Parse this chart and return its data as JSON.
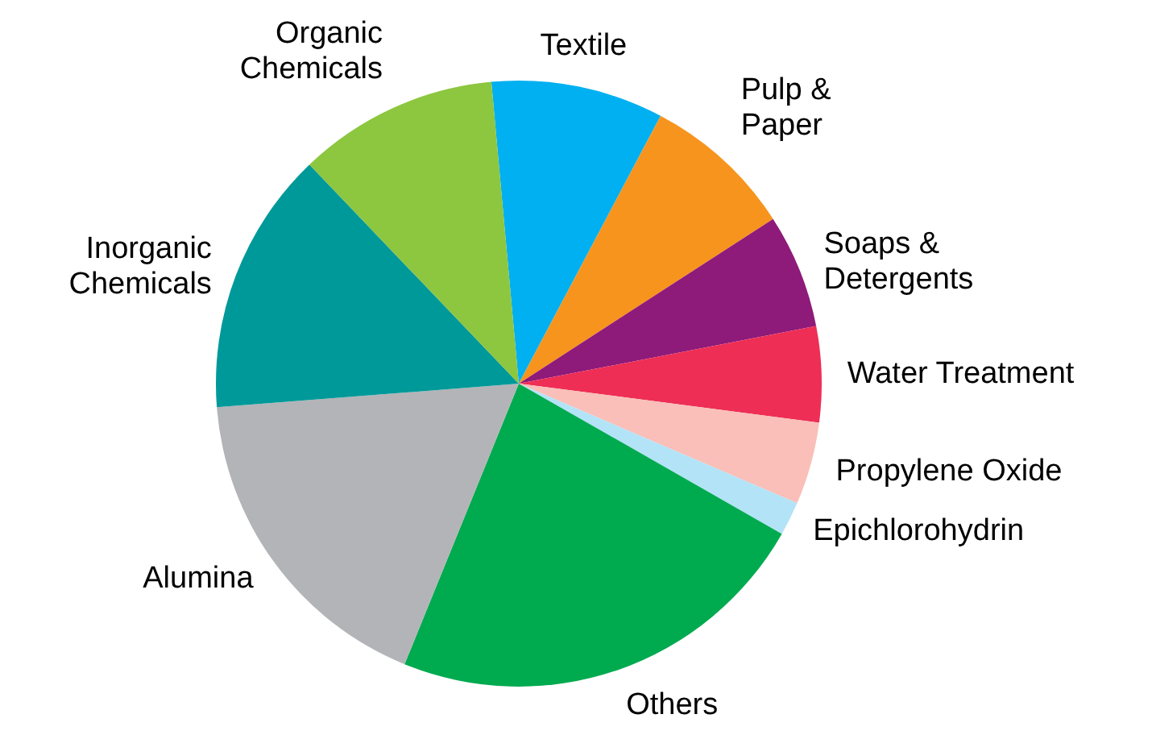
{
  "chart_data": {
    "type": "pie",
    "categories": [
      "Textile",
      "Pulp & Paper",
      "Soaps & Detergents",
      "Water Treatment",
      "Propylene Oxide",
      "Epichlorohydrin",
      "Others",
      "Alumina",
      "Inorganic Chemicals",
      "Organic Chemicals"
    ],
    "values": [
      9.2,
      8.1,
      6.1,
      5.1,
      4.4,
      1.8,
      22.9,
      17.6,
      14.1,
      10.7
    ],
    "colors": [
      "#00b0f0",
      "#f7941d",
      "#8e1a7a",
      "#ee2e55",
      "#f9bfb8",
      "#b3e3f7",
      "#00aa4f",
      "#b3b4b8",
      "#009999",
      "#8dc63f"
    ]
  }
}
